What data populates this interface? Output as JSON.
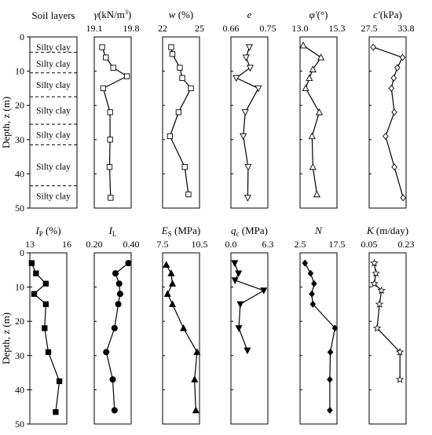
{
  "chart_data": [
    {
      "type": "table",
      "title": "Soil layers",
      "ylabel": "Depth, z (m)",
      "ylim": [
        0,
        50
      ],
      "yticks": [
        0,
        10,
        20,
        30,
        40,
        50
      ],
      "boundaries": [
        4.5,
        10.5,
        17.5,
        25.5,
        31.5,
        43.5
      ],
      "layers": [
        {
          "label": "Silty clay",
          "depth": 3.0
        },
        {
          "label": "Silty clay",
          "depth": 7.8
        },
        {
          "label": "Silty clay",
          "depth": 14.0
        },
        {
          "label": "Silty clay",
          "depth": 21.5
        },
        {
          "label": "Silty clay",
          "depth": 28.5
        },
        {
          "label": "Silty clay",
          "depth": 37.8
        },
        {
          "label": "Silty clay",
          "depth": 46.5
        }
      ]
    },
    {
      "type": "line",
      "title_main": "γ",
      "title_unit": "(kN/m",
      "title_sup": "3",
      "title_end": ")",
      "marker": "square",
      "xlim": [
        19.1,
        19.8
      ],
      "xticks": [
        "19.1",
        "19.8"
      ],
      "ylim": [
        0,
        50
      ],
      "x": [
        19.25,
        19.32,
        19.46,
        19.72,
        19.27,
        19.4,
        19.4,
        19.39,
        19.41
      ],
      "y": [
        3,
        6,
        9,
        11.5,
        15,
        22,
        30,
        38,
        47
      ]
    },
    {
      "type": "line",
      "title_main": "w",
      "title_unit": " (%)",
      "marker": "square",
      "xlim": [
        22,
        25
      ],
      "xticks": [
        "22",
        "25"
      ],
      "ylim": [
        0,
        50
      ],
      "x": [
        22.7,
        22.8,
        23.4,
        23.6,
        24.3,
        23.3,
        22.6,
        23.8,
        24.1
      ],
      "y": [
        3,
        5,
        9,
        12,
        15,
        22,
        29,
        38,
        46
      ]
    },
    {
      "type": "line",
      "title_main": "e",
      "title_unit": "",
      "marker": "triangle-down",
      "xlim": [
        0.66,
        0.75
      ],
      "xticks": [
        "0.66",
        "0.75"
      ],
      "ylim": [
        0,
        50
      ],
      "x": [
        0.705,
        0.697,
        0.707,
        0.673,
        0.727,
        0.695,
        0.69,
        0.702,
        0.701
      ],
      "y": [
        3,
        6,
        9,
        12,
        15,
        22,
        29,
        38,
        47
      ]
    },
    {
      "type": "line",
      "title_main": "φ'",
      "title_unit": "(°)",
      "marker": "triangle-up",
      "xlim": [
        13.0,
        15.3
      ],
      "xticks": [
        "13.0",
        "15.3"
      ],
      "ylim": [
        0,
        50
      ],
      "x": [
        13.2,
        14.3,
        13.8,
        13.58,
        13.35,
        14.2,
        13.75,
        13.8,
        14.05
      ],
      "y": [
        2.5,
        6,
        9.5,
        12,
        15,
        22,
        29,
        38,
        46
      ]
    },
    {
      "type": "line",
      "title_main": "c'",
      "title_unit": "(kPa)",
      "marker": "diamond",
      "xlim": [
        27.5,
        33.8
      ],
      "xticks": [
        "27.5",
        "33.8"
      ],
      "ylim": [
        0,
        50
      ],
      "x": [
        28.2,
        33.2,
        32.3,
        31.7,
        31.3,
        31.8,
        30.3,
        31.8,
        33.3
      ],
      "y": [
        3,
        6,
        9,
        12,
        15,
        22,
        29,
        38,
        47
      ]
    },
    {
      "type": "line",
      "title_main": "I",
      "title_sub": "P",
      "title_unit": " (%)",
      "marker": "square-filled",
      "xlim": [
        13,
        16
      ],
      "xticks": [
        "13",
        "16"
      ],
      "ylim": [
        0,
        50
      ],
      "x": [
        13.15,
        13.5,
        14.3,
        13.35,
        14.3,
        14.2,
        14.5,
        15.4,
        15.1
      ],
      "y": [
        3,
        6,
        9,
        12,
        15,
        22,
        29,
        37.5,
        46.5
      ]
    },
    {
      "type": "line",
      "title_main": "I",
      "title_sub": "L",
      "title_unit": "",
      "marker": "circle-filled",
      "xlim": [
        0.2,
        0.4
      ],
      "xticks": [
        "0.20",
        "0.40"
      ],
      "ylim": [
        0,
        50
      ],
      "x": [
        0.385,
        0.315,
        0.335,
        0.34,
        0.33,
        0.31,
        0.265,
        0.3,
        0.31
      ],
      "y": [
        3,
        6,
        9,
        12,
        15,
        22,
        29,
        37,
        46
      ]
    },
    {
      "type": "line",
      "title_main": "E",
      "title_sub": "S",
      "title_unit": " (MPa)",
      "marker": "triangle-up-filled",
      "xlim": [
        7.5,
        10.5
      ],
      "xticks": [
        "7.5",
        "10.5"
      ],
      "ylim": [
        0,
        50
      ],
      "x": [
        7.8,
        8.2,
        8.3,
        7.9,
        8.3,
        9.2,
        10.3,
        10.1,
        10.2
      ],
      "y": [
        3.5,
        6,
        9,
        12,
        15,
        22,
        29,
        37,
        46
      ]
    },
    {
      "type": "line",
      "title_main": "q",
      "title_sub": "c",
      "title_unit": " (MPa)",
      "marker": "triangle-down-filled",
      "xlim": [
        0,
        6.3
      ],
      "xticks": [
        "0.0",
        "6.3"
      ],
      "ylim": [
        0,
        50
      ],
      "x": [
        0.65,
        1.3,
        0.7,
        5.6,
        1.6,
        1.35,
        2.8
      ],
      "y": [
        3,
        6,
        8,
        11,
        15,
        22,
        28.5
      ]
    },
    {
      "type": "line",
      "title_main": "N",
      "title_unit": "",
      "marker": "diamond-filled",
      "xlim": [
        2.5,
        17.5
      ],
      "xticks": [
        "2.5",
        "17.5"
      ],
      "ylim": [
        0,
        50
      ],
      "x": [
        4.5,
        6.8,
        8.2,
        7.3,
        7.7,
        16.7,
        14.8,
        14.6,
        14.6
      ],
      "y": [
        3,
        6,
        9,
        12,
        15,
        22,
        29,
        37,
        46
      ]
    },
    {
      "type": "line",
      "title_main": "K",
      "title_unit": " (m/day)",
      "marker": "star",
      "xlim": [
        0.05,
        0.23
      ],
      "xticks": [
        "0.05",
        "0.23"
      ],
      "ylim": [
        0,
        50
      ],
      "x": [
        0.075,
        0.083,
        0.075,
        0.11,
        0.1,
        0.089,
        0.2,
        0.2
      ],
      "y": [
        3,
        6,
        9,
        11,
        15,
        22,
        29,
        37
      ]
    }
  ]
}
